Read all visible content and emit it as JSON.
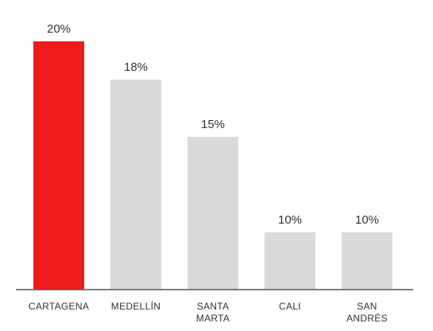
{
  "chart_data": {
    "type": "bar",
    "categories": [
      "CARTAGENA",
      "MEDELLÍN",
      "SANTA MARTA",
      "CALI",
      "SAN ANDRÉS"
    ],
    "category_lines": [
      [
        "CARTAGENA"
      ],
      [
        "MEDELLÍN"
      ],
      [
        "SANTA",
        "MARTA"
      ],
      [
        "CALI"
      ],
      [
        "SAN",
        "ANDRÉS"
      ]
    ],
    "values": [
      20,
      18,
      15,
      10,
      10
    ],
    "data_labels": [
      "20%",
      "18%",
      "15%",
      "10%",
      "10%"
    ],
    "unit": "%",
    "ylim": [
      7,
      20
    ],
    "grid": false,
    "legend": "none",
    "colors": {
      "highlight": "#ee1c1c",
      "bar": "#dadada",
      "axis": "#555555",
      "text": "#333333"
    },
    "highlight_index": 0
  }
}
